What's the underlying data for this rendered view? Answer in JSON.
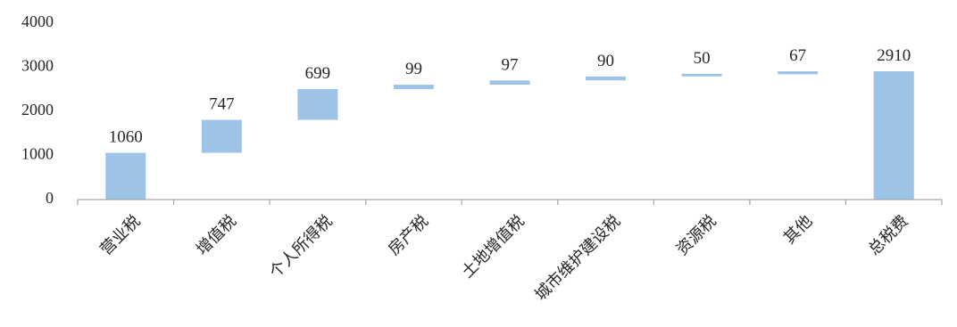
{
  "chart_data": {
    "type": "bar",
    "subtype": "waterfall",
    "categories": [
      "营业税",
      "增值税",
      "个人所得税",
      "房产税",
      "土地增值税",
      "城市维护建设税",
      "资源税",
      "其他",
      "总税费"
    ],
    "values": [
      1060,
      747,
      699,
      99,
      97,
      90,
      50,
      67,
      2910
    ],
    "data_labels": [
      "1060",
      "747",
      "699",
      "99",
      "97",
      "90",
      "50",
      "67",
      "2910"
    ],
    "total_index": 8,
    "ylim": [
      0,
      4000
    ],
    "yticks": [
      "0",
      "1000",
      "2000",
      "3000",
      "4000"
    ],
    "grid": false,
    "legend": "none",
    "bar_color": "#9dc3e6",
    "axis_color": "#a6a6a6",
    "title": "",
    "xlabel": "",
    "ylabel": ""
  }
}
